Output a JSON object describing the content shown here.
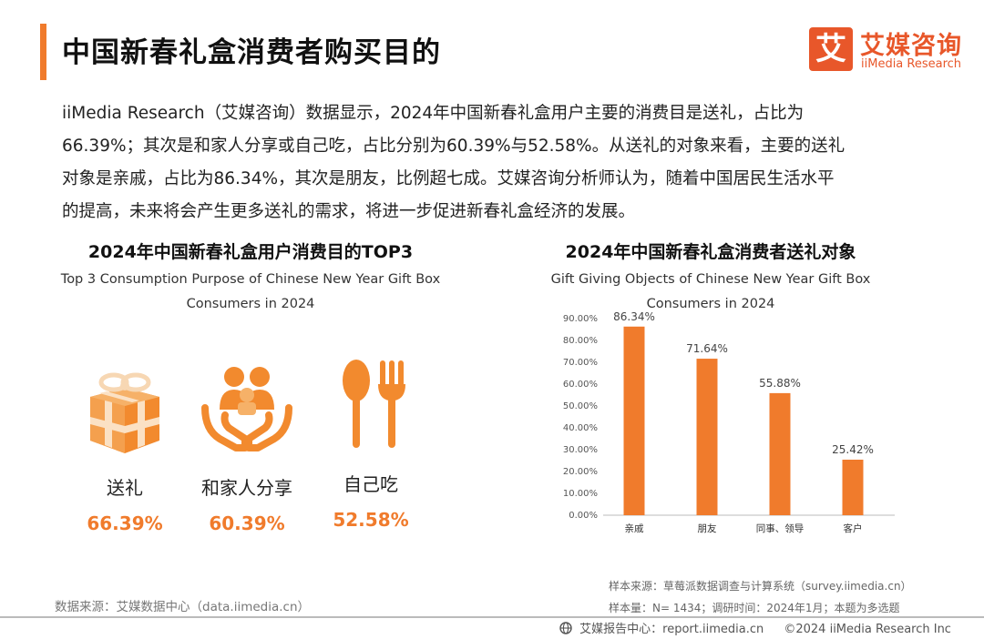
{
  "header": {
    "title": "中国新春礼盒消费者购买目的",
    "logo_mark": "艾",
    "logo_cn": "艾媒咨询",
    "logo_en": "iiMedia Research"
  },
  "intro": {
    "line1": "iiMedia Research（艾媒咨询）数据显示，2024年中国新春礼盒用户主要的消费目是送礼，占比为",
    "line2": "66.39%；其次是和家人分享或自己吃，占比分别为60.39%与52.58%。从送礼的对象来看，主要的送礼",
    "line3": "对象是亲戚，占比为86.34%，其次是朋友，比例超七成。艾媒咨询分析师认为，随着中国居民生活水平",
    "line4": "的提高，未来将会产生更多送礼的需求，将进一步促进新春礼盒经济的发展。"
  },
  "left": {
    "title_cn": "2024年中国新春礼盒用户消费目的TOP3",
    "title_en_1": "Top 3 Consumption Purpose of Chinese New Year Gift Box",
    "title_en_2": "Consumers in 2024",
    "items": [
      {
        "icon": "gift-box-icon",
        "label": "送礼",
        "value": "66.39%"
      },
      {
        "icon": "family-hands-icon",
        "label": "和家人分享",
        "value": "60.39%"
      },
      {
        "icon": "spoon-fork-icon",
        "label": "自己吃",
        "value": "52.58%"
      }
    ]
  },
  "chart_data": {
    "type": "bar",
    "title": "2024年中国新春礼盒消费者送礼对象",
    "subtitle_1": "Gift Giving Objects of Chinese New Year Gift Box",
    "subtitle_2": "Consumers in 2024",
    "categories": [
      "亲戚",
      "朋友",
      "同事、领导",
      "客户"
    ],
    "values": [
      86.34,
      71.64,
      55.88,
      25.42
    ],
    "value_labels": [
      "86.34%",
      "71.64%",
      "55.88%",
      "25.42%"
    ],
    "yticks": [
      "0.00%",
      "10.00%",
      "20.00%",
      "30.00%",
      "40.00%",
      "50.00%",
      "60.00%",
      "70.00%",
      "80.00%",
      "90.00%"
    ],
    "ylim": [
      0,
      90
    ],
    "grid": false,
    "bar_color": "#f07b2c"
  },
  "sources": {
    "left": "数据来源：艾媒数据中心（data.iimedia.cn）",
    "right_1": "样本来源：草莓派数据调查与计算系统（survey.iimedia.cn）",
    "right_2": "样本量：N= 1434；调研时间：2024年1月；本题为多选题"
  },
  "footer": {
    "report": "艾媒报告中心：report.iimedia.cn",
    "copyright": "©2024  iiMedia Research  Inc"
  },
  "colors": {
    "accent": "#f07b2c",
    "brand": "#e8572a"
  }
}
